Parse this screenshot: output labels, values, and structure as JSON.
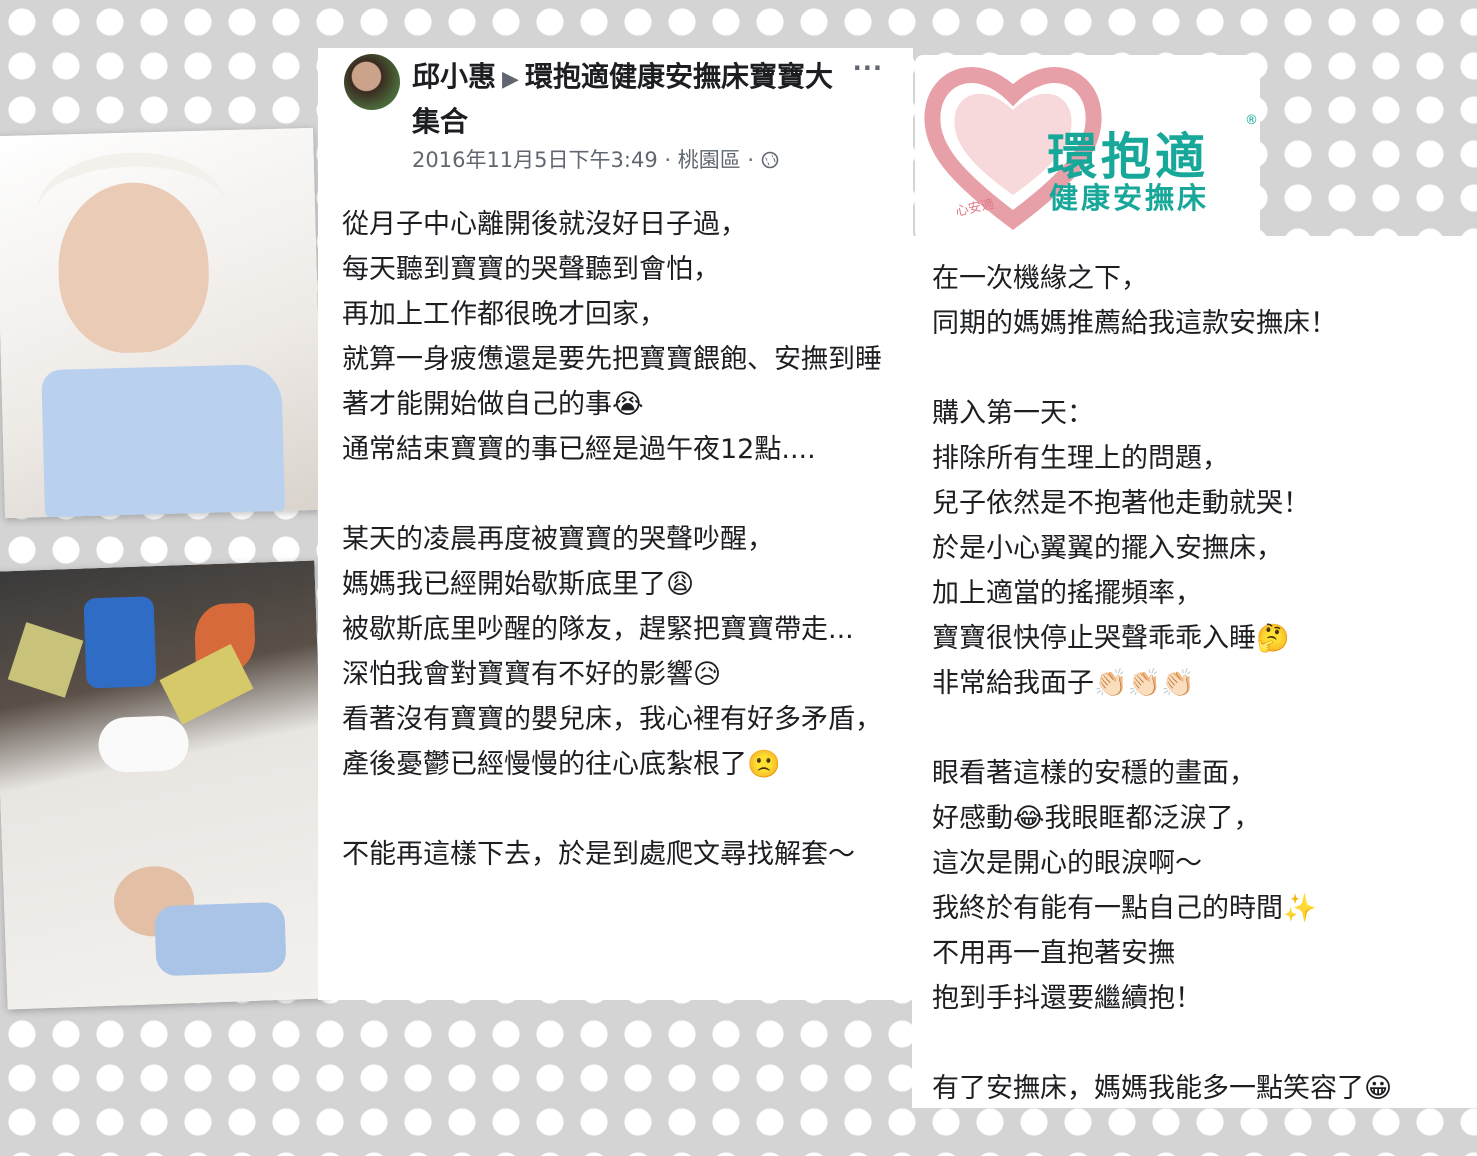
{
  "post": {
    "author": "邱小惠",
    "group": "環抱適健康安撫床寶寶大集合",
    "arrow": "▶",
    "more": "···",
    "meta": "2016年11月5日下午3:49 · 桃園區 · ",
    "privacy_icon": "globe-icon",
    "paragraphs": [
      "從月子中心離開後就沒好日子過，\n每天聽到寶寶的哭聲聽到會怕，\n再加上工作都很晚才回家，\n就算一身疲憊還是要先把寶寶餵飽、安撫到睡著才能開始做自己的事😭\n通常結束寶寶的事已經是過午夜12點....",
      "某天的凌晨再度被寶寶的哭聲吵醒，\n媽媽我已經開始歇斯底里了😩\n被歇斯底里吵醒的隊友，趕緊把寶寶帶走...\n深怕我會對寶寶有不好的影響😥\n看著沒有寶寶的嬰兒床，我心裡有好多矛盾，\n產後憂鬱已經慢慢的往心底紮根了🙁",
      "不能再這樣下去，於是到處爬文尋找解套～"
    ]
  },
  "logo": {
    "brand": "環抱適",
    "reg": "®",
    "sub": "健康安撫床",
    "heart_text": "心安適"
  },
  "right": {
    "paragraphs": [
      "在一次機緣之下，\n同期的媽媽推薦給我這款安撫床！",
      "購入第一天：\n排除所有生理上的問題，\n兒子依然是不抱著他走動就哭！\n於是小心翼翼的擺入安撫床，\n加上適當的搖擺頻率，\n寶寶很快停止哭聲乖乖入睡🤔\n非常給我面子👏🏻👏🏻👏🏻",
      "眼看著這樣的安穩的畫面，\n好感動😂我眼眶都泛淚了，\n這次是開心的眼淚啊～\n我終於有能有一點自己的時間✨\n不用再一直抱著安撫\n抱到手抖還要繼續抱！",
      "有了安撫床，媽媽我能多一點笑容了😀"
    ]
  },
  "colors": {
    "brand": "#18a89a",
    "heart": "#e8a0a8"
  }
}
